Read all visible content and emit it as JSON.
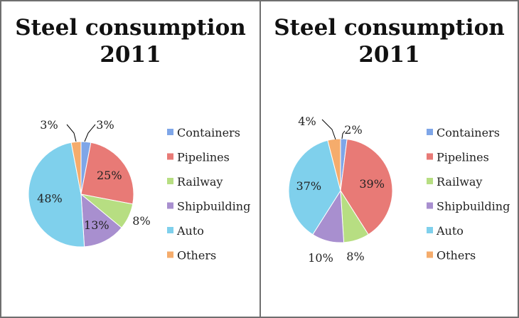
{
  "chart_data": [
    {
      "type": "pie",
      "title_line1": "Steel consumption",
      "title_line2": "2011",
      "categories": [
        "Containers",
        "Pipelines",
        "Railway",
        "Shipbuilding",
        "Auto",
        "Others"
      ],
      "values": [
        3,
        25,
        8,
        13,
        48,
        3
      ],
      "labels": [
        "3%",
        "25%",
        "8%",
        "13%",
        "48%",
        "3%"
      ],
      "legend_position": "right"
    },
    {
      "type": "pie",
      "title_line1": "Steel consumption",
      "title_line2": "2011",
      "categories": [
        "Containers",
        "Pipelines",
        "Railway",
        "Shipbuilding",
        "Auto",
        "Others"
      ],
      "values": [
        2,
        39,
        8,
        10,
        37,
        4
      ],
      "labels": [
        "2%",
        "39%",
        "8%",
        "10%",
        "37%",
        "4%"
      ],
      "legend_position": "right"
    }
  ],
  "colors": [
    "#7fa6e8",
    "#e87a76",
    "#b7de82",
    "#a88fcf",
    "#7fd0ec",
    "#f5ac6c"
  ]
}
